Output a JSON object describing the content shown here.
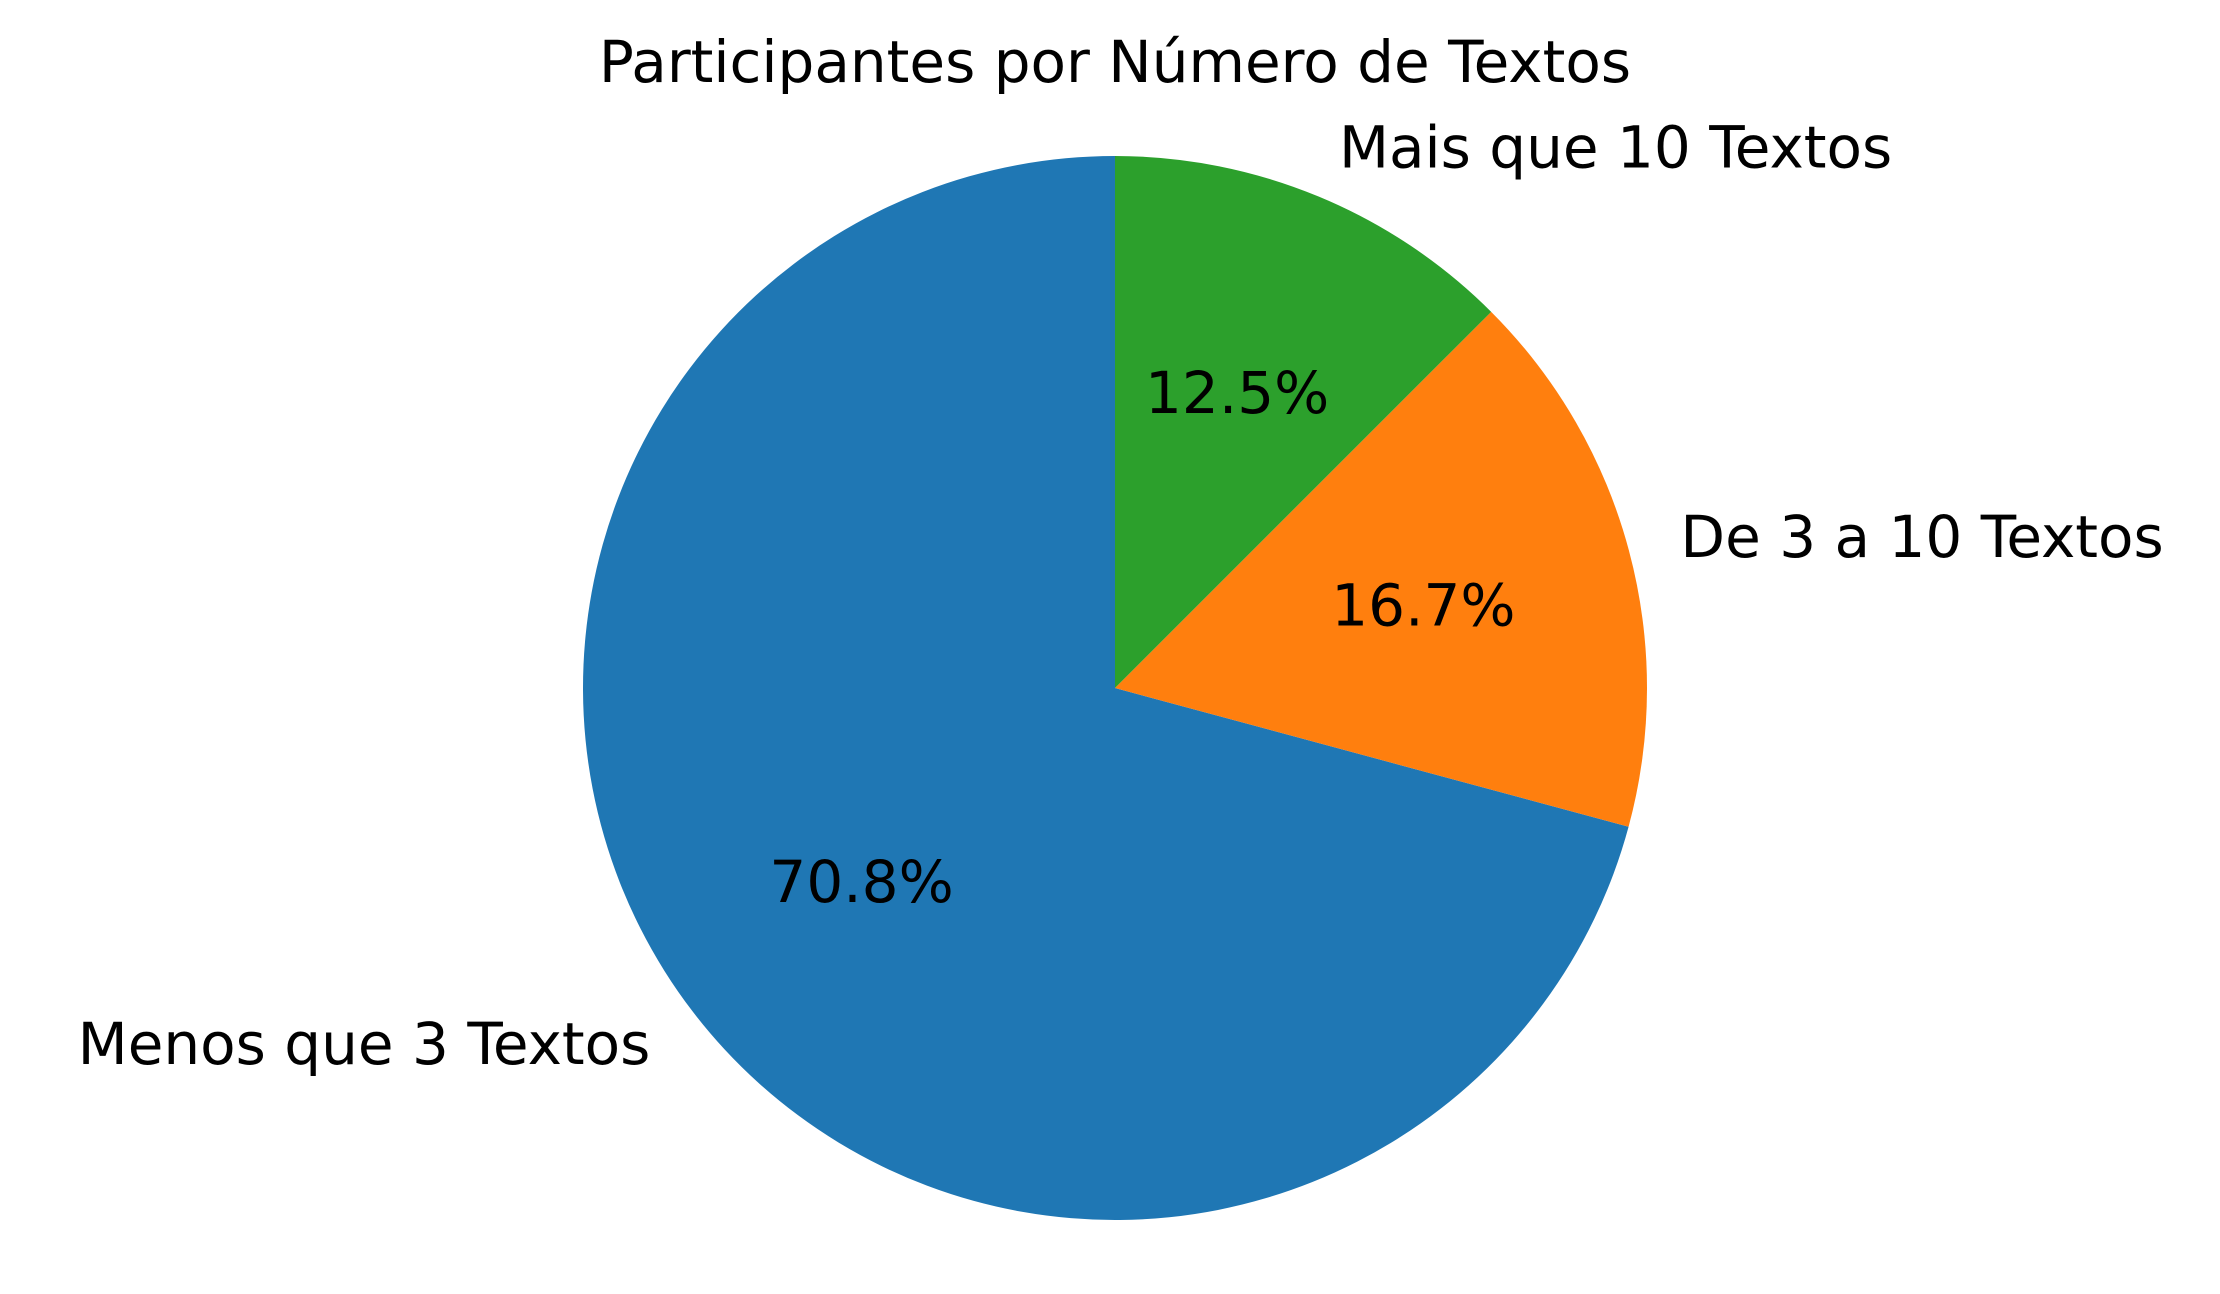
{
  "chart_data": {
    "type": "pie",
    "title": "Participantes por Número de Textos",
    "categories": [
      "Menos que 3 Textos",
      "De 3 a 10 Textos",
      "Mais que 10 Textos"
    ],
    "values": [
      70.8,
      16.7,
      12.5
    ],
    "value_labels": [
      "70.8%",
      "16.7%",
      "12.5%"
    ],
    "colors": [
      "#1f77b4",
      "#ff7f0e",
      "#2ca02c"
    ],
    "start_angle_deg": 90,
    "direction": "counterclockwise",
    "legend": "none"
  }
}
